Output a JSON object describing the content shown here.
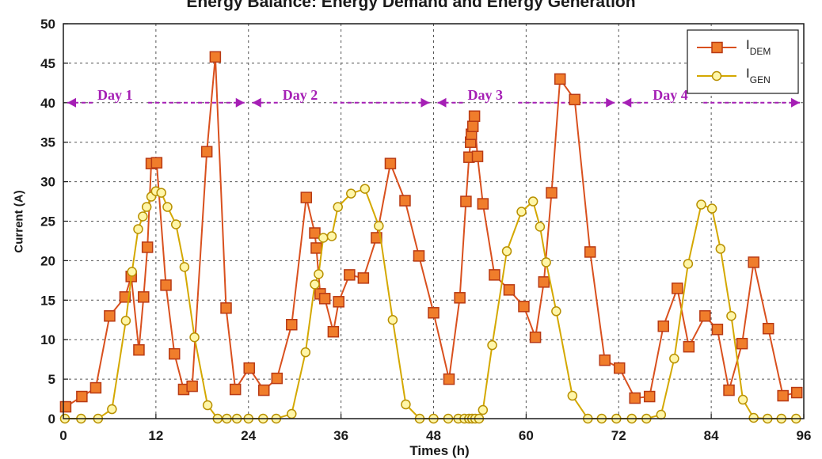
{
  "chart_data": {
    "type": "line",
    "title": "Energy Balance: Energy Demand and Energy Generation",
    "xlabel": "Times (h)",
    "ylabel": "Current (A)",
    "xlim": [
      0,
      96
    ],
    "ylim": [
      0,
      50
    ],
    "xticks": [
      0,
      12,
      24,
      36,
      48,
      60,
      72,
      84,
      96
    ],
    "yticks": [
      0,
      5,
      10,
      15,
      20,
      25,
      30,
      35,
      40,
      45,
      50
    ],
    "grid": true,
    "legend_position": "top-right",
    "series": [
      {
        "name": "I_DEM",
        "legend_main": "I",
        "legend_sub": "DEM",
        "color": "#d9501e",
        "marker": "square",
        "x": [
          0.3,
          2.4,
          4.2,
          6.0,
          8.0,
          8.8,
          9.8,
          10.4,
          10.9,
          11.4,
          12.1,
          13.3,
          14.4,
          15.6,
          16.7,
          18.6,
          19.7,
          21.1,
          22.3,
          24.1,
          26.0,
          27.7,
          29.6,
          31.5,
          32.6,
          32.8,
          33.3,
          33.9,
          35.0,
          35.7,
          37.1,
          38.9,
          40.6,
          42.4,
          44.3,
          46.1,
          48.0,
          50.0,
          51.4,
          52.2,
          52.6,
          52.8,
          52.9,
          53.1,
          53.3,
          53.7,
          54.4,
          55.9,
          57.8,
          59.7,
          61.2,
          62.3,
          63.3,
          64.4,
          66.3,
          68.3,
          70.2,
          72.1,
          74.1,
          76.0,
          77.8,
          79.6,
          81.1,
          83.2,
          84.8,
          86.3,
          88.0,
          89.5,
          91.4,
          93.3,
          95.1
        ],
        "y": [
          1.5,
          2.8,
          3.9,
          13.0,
          15.4,
          18.0,
          8.7,
          15.4,
          21.7,
          32.3,
          32.4,
          16.9,
          8.2,
          3.7,
          4.1,
          33.8,
          45.8,
          14.0,
          3.7,
          6.4,
          3.6,
          5.1,
          11.9,
          28.0,
          23.5,
          21.6,
          15.8,
          15.2,
          11.0,
          14.8,
          18.2,
          17.8,
          22.9,
          32.3,
          27.6,
          20.6,
          13.4,
          5.0,
          15.3,
          27.5,
          33.1,
          35.0,
          36.0,
          37.0,
          38.3,
          33.2,
          27.2,
          18.2,
          16.3,
          14.2,
          10.3,
          17.3,
          28.6,
          43.0,
          40.4,
          21.1,
          7.4,
          6.4,
          2.6,
          2.8,
          11.7,
          16.5,
          9.1,
          13.0,
          11.3,
          3.6,
          9.5,
          19.8,
          11.4,
          2.9,
          3.3
        ]
      },
      {
        "name": "I_GEN",
        "legend_main": "I",
        "legend_sub": "GEN",
        "color": "#d4a800",
        "marker": "circle",
        "x": [
          0.2,
          2.3,
          4.5,
          6.3,
          8.1,
          8.9,
          9.7,
          10.3,
          10.8,
          11.4,
          12.0,
          12.7,
          13.5,
          14.6,
          15.7,
          17.0,
          18.7,
          20.0,
          21.2,
          22.5,
          24.0,
          25.9,
          27.6,
          29.6,
          31.4,
          32.6,
          33.1,
          33.7,
          34.8,
          35.6,
          37.3,
          39.1,
          40.9,
          42.7,
          44.4,
          46.2,
          48.0,
          49.9,
          51.2,
          52.0,
          52.6,
          53.0,
          53.4,
          53.9,
          54.4,
          55.6,
          57.5,
          59.4,
          60.9,
          61.8,
          62.6,
          63.9,
          66.0,
          68.0,
          69.8,
          71.7,
          73.7,
          75.6,
          77.5,
          79.2,
          81.0,
          82.7,
          84.1,
          85.2,
          86.6,
          88.1,
          89.5,
          91.3,
          93.1,
          95.0
        ],
        "y": [
          0.0,
          0.0,
          0.0,
          1.2,
          12.4,
          18.6,
          24.0,
          25.6,
          26.8,
          28.1,
          28.8,
          28.6,
          26.8,
          24.6,
          19.2,
          10.3,
          1.7,
          0.0,
          0.0,
          0.0,
          0.0,
          0.0,
          0.0,
          0.6,
          8.4,
          17.0,
          18.3,
          22.9,
          23.1,
          26.8,
          28.5,
          29.1,
          24.4,
          12.5,
          1.8,
          0.0,
          0.0,
          0.0,
          0.0,
          0.0,
          0.0,
          0.0,
          0.0,
          0.0,
          1.1,
          9.3,
          21.2,
          26.2,
          27.5,
          24.3,
          19.8,
          13.6,
          2.9,
          0.0,
          0.0,
          0.0,
          0.0,
          0.0,
          0.5,
          7.6,
          19.6,
          27.1,
          26.6,
          21.5,
          13.0,
          2.4,
          0.1,
          0.0,
          0.0,
          0.0
        ]
      }
    ],
    "annotations": [
      {
        "label": "Day 1",
        "x_start": 0,
        "x_end": 24,
        "y": 40
      },
      {
        "label": "Day 2",
        "x_start": 24,
        "x_end": 48,
        "y": 40
      },
      {
        "label": "Day 3",
        "x_start": 48,
        "x_end": 72,
        "y": 40
      },
      {
        "label": "Day 4",
        "x_start": 72,
        "x_end": 96,
        "y": 40
      }
    ],
    "annotation_color": "#a51fb5"
  }
}
